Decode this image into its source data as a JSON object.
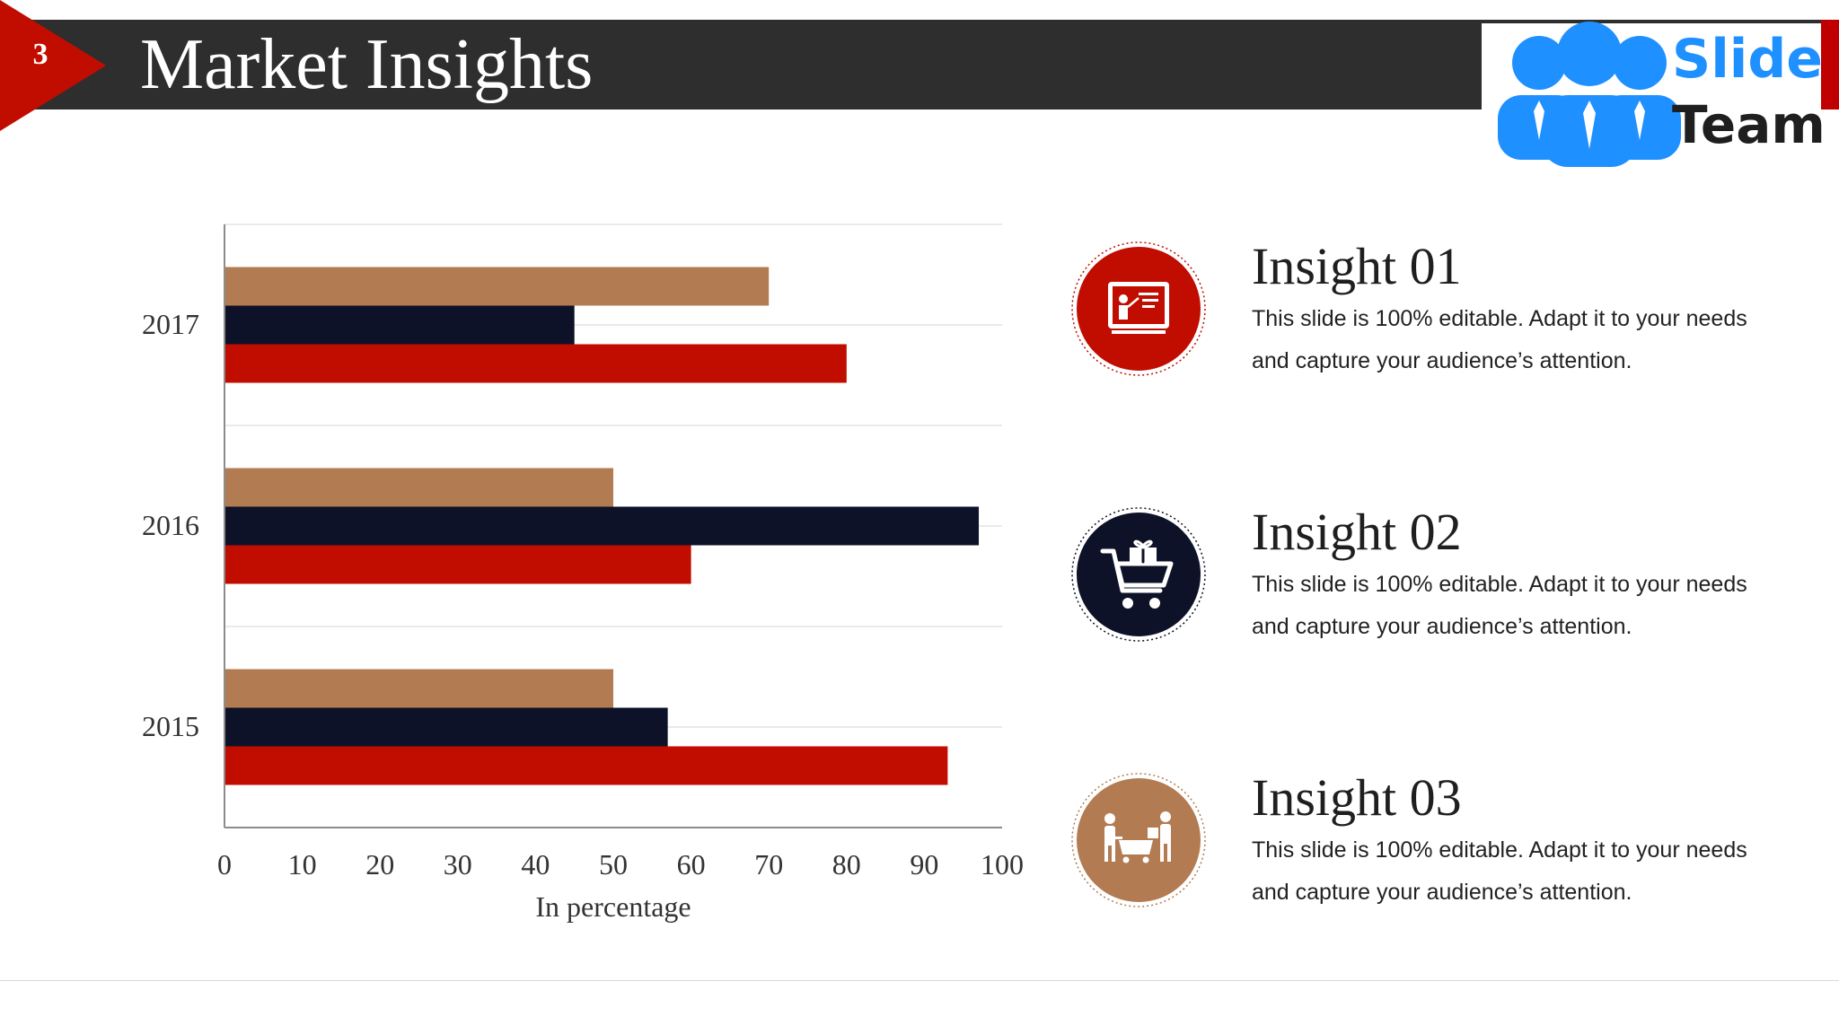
{
  "slide": {
    "number": "3",
    "title": "Market Insights"
  },
  "logo": {
    "word1": "Slide",
    "word2": "Team"
  },
  "colors": {
    "header": "#2e2e2e",
    "red": "#c00d00",
    "navy": "#0e1228",
    "tan": "#b37b51",
    "logo_blue": "#1e90ff"
  },
  "chart_data": {
    "type": "bar",
    "orientation": "horizontal",
    "categories": [
      "2015",
      "2016",
      "2017"
    ],
    "series": [
      {
        "values": [
          93,
          60,
          80
        ],
        "color": "#c00d00"
      },
      {
        "values": [
          57,
          97,
          45
        ],
        "color": "#0e1228"
      },
      {
        "values": [
          50,
          50,
          70
        ],
        "color": "#b37b51"
      }
    ],
    "xlabel": "In percentage",
    "xlim": [
      0,
      100
    ],
    "xticks": [
      "0",
      "10",
      "20",
      "30",
      "40",
      "50",
      "60",
      "70",
      "80",
      "90",
      "100"
    ],
    "grid": true,
    "legend": "none"
  },
  "insights": [
    {
      "title": "Insight 01",
      "text": "This slide is 100% editable. Adapt it to your needs and capture your audience’s attention.",
      "icon": "presentation-board-icon",
      "color": "#c00d00"
    },
    {
      "title": "Insight 02",
      "text": "This slide is 100% editable. Adapt it to your needs and capture your audience’s attention.",
      "icon": "shopping-cart-gift-icon",
      "color": "#0e1228"
    },
    {
      "title": "Insight 03",
      "text": "This slide is 100% editable. Adapt it to your needs and capture your audience’s attention.",
      "icon": "shoppers-trolley-icon",
      "color": "#b37b51"
    }
  ]
}
